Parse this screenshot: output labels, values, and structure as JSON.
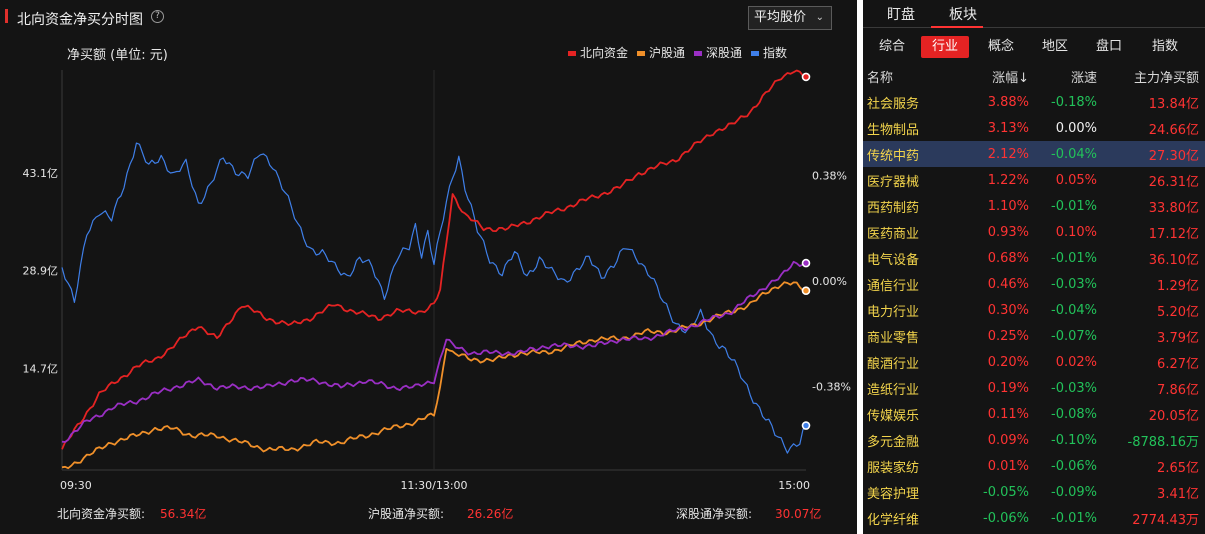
{
  "chart_panel": {
    "title": "北向资金净买分时图",
    "help_icon_glyph": "?",
    "mode_select": {
      "value": "平均股价",
      "icon": "chevron-down-icon"
    },
    "unit_label": "净买额 (单位: 元)",
    "legend": [
      {
        "name": "北向资金",
        "color": "#e52323"
      },
      {
        "name": "沪股通",
        "color": "#f0902a"
      },
      {
        "name": "深股通",
        "color": "#9a2fc4"
      },
      {
        "name": "指数",
        "color": "#3f7fe8"
      }
    ],
    "summary": [
      {
        "label": "北向资金净买额:",
        "value": "56.34亿"
      },
      {
        "label": "沪股通净买额:",
        "value": "26.26亿"
      },
      {
        "label": "深股通净买额:",
        "value": "30.07亿"
      }
    ]
  },
  "chart_data": {
    "type": "line",
    "x_ticks": [
      "09:30",
      "11:30/13:00",
      "15:00"
    ],
    "y_left_ticks": [
      {
        "label": "43.1亿",
        "value": 43.1
      },
      {
        "label": "28.9亿",
        "value": 28.9
      },
      {
        "label": "14.7亿",
        "value": 14.7
      }
    ],
    "y_right_ticks": [
      {
        "label": "0.38%",
        "value": 0.38
      },
      {
        "label": "0.00%",
        "value": 0.0
      },
      {
        "label": "-0.38%",
        "value": -0.38
      }
    ],
    "ylim_left": [
      0,
      58
    ],
    "ylim_right": [
      -0.68,
      0.76
    ],
    "x_points": 241,
    "series": [
      {
        "name": "北向资金",
        "axis": "left",
        "color": "#e52323",
        "points": [
          [
            0,
            3
          ],
          [
            6,
            7
          ],
          [
            12,
            11
          ],
          [
            18,
            13
          ],
          [
            24,
            15
          ],
          [
            30,
            16
          ],
          [
            36,
            18
          ],
          [
            44,
            21
          ],
          [
            50,
            19
          ],
          [
            58,
            24
          ],
          [
            66,
            22
          ],
          [
            74,
            21
          ],
          [
            80,
            22
          ],
          [
            88,
            24
          ],
          [
            94,
            23
          ],
          [
            102,
            22
          ],
          [
            108,
            23
          ],
          [
            116,
            23
          ],
          [
            120,
            24
          ],
          [
            122,
            26
          ],
          [
            124,
            33
          ],
          [
            126,
            40
          ],
          [
            130,
            37
          ],
          [
            136,
            35
          ],
          [
            144,
            35
          ],
          [
            150,
            36
          ],
          [
            156,
            37
          ],
          [
            162,
            38
          ],
          [
            168,
            39
          ],
          [
            174,
            40
          ],
          [
            180,
            41
          ],
          [
            186,
            43
          ],
          [
            192,
            44
          ],
          [
            198,
            45
          ],
          [
            204,
            47
          ],
          [
            210,
            49
          ],
          [
            216,
            50
          ],
          [
            222,
            52
          ],
          [
            228,
            55
          ],
          [
            232,
            57
          ],
          [
            236,
            58
          ],
          [
            240,
            57
          ]
        ]
      },
      {
        "name": "沪股通",
        "axis": "left",
        "color": "#f0902a",
        "points": [
          [
            0,
            0
          ],
          [
            8,
            2
          ],
          [
            16,
            4
          ],
          [
            24,
            5
          ],
          [
            30,
            6
          ],
          [
            36,
            6
          ],
          [
            42,
            5
          ],
          [
            50,
            5
          ],
          [
            58,
            4
          ],
          [
            66,
            3
          ],
          [
            74,
            3
          ],
          [
            82,
            4
          ],
          [
            90,
            4
          ],
          [
            98,
            5
          ],
          [
            106,
            6
          ],
          [
            114,
            7
          ],
          [
            120,
            8
          ],
          [
            122,
            12
          ],
          [
            124,
            18
          ],
          [
            126,
            17
          ],
          [
            132,
            16
          ],
          [
            140,
            16
          ],
          [
            148,
            17
          ],
          [
            156,
            17
          ],
          [
            164,
            18
          ],
          [
            172,
            19
          ],
          [
            180,
            19
          ],
          [
            188,
            20
          ],
          [
            196,
            20
          ],
          [
            204,
            21
          ],
          [
            210,
            22
          ],
          [
            216,
            23
          ],
          [
            222,
            24
          ],
          [
            228,
            26
          ],
          [
            232,
            27
          ],
          [
            236,
            27
          ],
          [
            240,
            26
          ]
        ]
      },
      {
        "name": "深股通",
        "axis": "left",
        "color": "#9a2fc4",
        "points": [
          [
            0,
            4
          ],
          [
            8,
            7
          ],
          [
            16,
            9
          ],
          [
            24,
            10
          ],
          [
            30,
            11
          ],
          [
            36,
            12
          ],
          [
            44,
            13
          ],
          [
            50,
            12
          ],
          [
            58,
            12
          ],
          [
            66,
            12
          ],
          [
            74,
            13
          ],
          [
            82,
            13
          ],
          [
            90,
            12
          ],
          [
            98,
            13
          ],
          [
            106,
            12
          ],
          [
            114,
            12
          ],
          [
            120,
            13
          ],
          [
            122,
            16
          ],
          [
            124,
            19
          ],
          [
            126,
            18
          ],
          [
            132,
            17
          ],
          [
            140,
            17
          ],
          [
            148,
            17
          ],
          [
            156,
            18
          ],
          [
            164,
            18
          ],
          [
            172,
            18
          ],
          [
            180,
            19
          ],
          [
            188,
            19
          ],
          [
            196,
            20
          ],
          [
            204,
            21
          ],
          [
            210,
            22
          ],
          [
            216,
            23
          ],
          [
            222,
            25
          ],
          [
            228,
            27
          ],
          [
            232,
            28
          ],
          [
            236,
            30
          ],
          [
            240,
            30
          ]
        ]
      },
      {
        "name": "指数",
        "axis": "right",
        "color": "#3f7fe8",
        "points": [
          [
            0,
            0.05
          ],
          [
            4,
            -0.08
          ],
          [
            8,
            0.18
          ],
          [
            12,
            0.25
          ],
          [
            16,
            0.22
          ],
          [
            20,
            0.35
          ],
          [
            24,
            0.5
          ],
          [
            28,
            0.41
          ],
          [
            32,
            0.45
          ],
          [
            36,
            0.38
          ],
          [
            40,
            0.42
          ],
          [
            44,
            0.28
          ],
          [
            48,
            0.35
          ],
          [
            52,
            0.44
          ],
          [
            56,
            0.4
          ],
          [
            60,
            0.38
          ],
          [
            64,
            0.46
          ],
          [
            68,
            0.42
          ],
          [
            72,
            0.32
          ],
          [
            76,
            0.2
          ],
          [
            80,
            0.12
          ],
          [
            84,
            0.1
          ],
          [
            88,
            0.05
          ],
          [
            92,
            0.02
          ],
          [
            96,
            0.08
          ],
          [
            100,
            0.05
          ],
          [
            104,
            -0.05
          ],
          [
            108,
            0.08
          ],
          [
            112,
            0.12
          ],
          [
            114,
            0.2
          ],
          [
            116,
            0.1
          ],
          [
            118,
            0.18
          ],
          [
            120,
            0.06
          ],
          [
            124,
            0.28
          ],
          [
            126,
            0.38
          ],
          [
            128,
            0.45
          ],
          [
            130,
            0.34
          ],
          [
            134,
            0.18
          ],
          [
            138,
            0.08
          ],
          [
            142,
            0.03
          ],
          [
            146,
            0.1
          ],
          [
            150,
            0.02
          ],
          [
            154,
            0.08
          ],
          [
            158,
            0.03
          ],
          [
            162,
            0.0
          ],
          [
            166,
            0.04
          ],
          [
            170,
            0.08
          ],
          [
            174,
            0.02
          ],
          [
            178,
            0.06
          ],
          [
            182,
            0.12
          ],
          [
            186,
            0.08
          ],
          [
            190,
            0.02
          ],
          [
            194,
            -0.08
          ],
          [
            198,
            -0.15
          ],
          [
            202,
            -0.18
          ],
          [
            206,
            -0.12
          ],
          [
            210,
            -0.2
          ],
          [
            214,
            -0.25
          ],
          [
            218,
            -0.32
          ],
          [
            222,
            -0.4
          ],
          [
            226,
            -0.48
          ],
          [
            230,
            -0.55
          ],
          [
            234,
            -0.6
          ],
          [
            238,
            -0.58
          ],
          [
            240,
            -0.52
          ]
        ]
      }
    ]
  },
  "sector_panel": {
    "top_tabs": [
      {
        "label": "盯盘",
        "active": false
      },
      {
        "label": "板块",
        "active": true
      }
    ],
    "sub_tabs": [
      {
        "label": "综合",
        "active": false
      },
      {
        "label": "行业",
        "active": true
      },
      {
        "label": "概念",
        "active": false
      },
      {
        "label": "地区",
        "active": false
      },
      {
        "label": "盘口",
        "active": false
      },
      {
        "label": "指数",
        "active": false
      }
    ],
    "columns": [
      "名称",
      "涨幅↓",
      "涨速",
      "主力净买额"
    ],
    "rows": [
      {
        "name": "社会服务",
        "change": "3.88%",
        "speed": "-0.18%",
        "net_buy": "13.84亿"
      },
      {
        "name": "生物制品",
        "change": "3.13%",
        "speed": "0.00%",
        "net_buy": "24.66亿"
      },
      {
        "name": "传统中药",
        "change": "2.12%",
        "speed": "-0.04%",
        "net_buy": "27.30亿",
        "selected": true
      },
      {
        "name": "医疗器械",
        "change": "1.22%",
        "speed": "0.05%",
        "net_buy": "26.31亿"
      },
      {
        "name": "西药制药",
        "change": "1.10%",
        "speed": "-0.01%",
        "net_buy": "33.80亿"
      },
      {
        "name": "医药商业",
        "change": "0.93%",
        "speed": "0.10%",
        "net_buy": "17.12亿"
      },
      {
        "name": "电气设备",
        "change": "0.68%",
        "speed": "-0.01%",
        "net_buy": "36.10亿"
      },
      {
        "name": "通信行业",
        "change": "0.46%",
        "speed": "-0.03%",
        "net_buy": "1.29亿"
      },
      {
        "name": "电力行业",
        "change": "0.30%",
        "speed": "-0.04%",
        "net_buy": "5.20亿"
      },
      {
        "name": "商业零售",
        "change": "0.25%",
        "speed": "-0.07%",
        "net_buy": "3.79亿"
      },
      {
        "name": "酿酒行业",
        "change": "0.20%",
        "speed": "0.02%",
        "net_buy": "6.27亿"
      },
      {
        "name": "造纸行业",
        "change": "0.19%",
        "speed": "-0.03%",
        "net_buy": "7.86亿"
      },
      {
        "name": "传媒娱乐",
        "change": "0.11%",
        "speed": "-0.08%",
        "net_buy": "20.05亿"
      },
      {
        "name": "多元金融",
        "change": "0.09%",
        "speed": "-0.10%",
        "net_buy": "-8788.16万"
      },
      {
        "name": "服装家纺",
        "change": "0.01%",
        "speed": "-0.06%",
        "net_buy": "2.65亿"
      },
      {
        "name": "美容护理",
        "change": "-0.05%",
        "speed": "-0.09%",
        "net_buy": "3.41亿"
      },
      {
        "name": "化学纤维",
        "change": "-0.06%",
        "speed": "-0.01%",
        "net_buy": "2774.43万"
      }
    ]
  }
}
